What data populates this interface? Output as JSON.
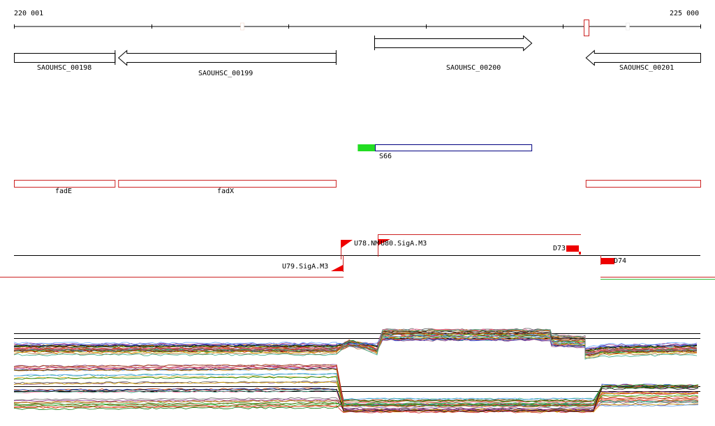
{
  "ruler": {
    "start_label": "220 001",
    "end_label": "225 000",
    "start": 220001,
    "end": 225000
  },
  "genes": [
    {
      "name": "SAOUHSC_00198",
      "start": 220001,
      "end": 220735,
      "strand": "+"
    },
    {
      "name": "SAOUHSC_00199",
      "start": 220760,
      "end": 222345,
      "strand": "-"
    },
    {
      "name": "SAOUHSC_00200",
      "start": 222625,
      "end": 223770,
      "strand": "+"
    },
    {
      "name": "SAOUHSC_00201",
      "start": 224165,
      "end": 225000,
      "strand": "-"
    }
  ],
  "promoter_track": [
    {
      "label": "S66",
      "start": 222505,
      "end": 222630,
      "color": "#22dd22"
    },
    {
      "label": "",
      "start": 222630,
      "end": 223770,
      "color": "#ffffff"
    }
  ],
  "operon_track": [
    {
      "label": "fadE",
      "start": 220001,
      "end": 220735
    },
    {
      "label": "fadX",
      "start": 220760,
      "end": 222345
    },
    {
      "label": "",
      "start": 224165,
      "end": 225000
    }
  ],
  "features": [
    {
      "label": "U78.NM",
      "name": "feature-u78-nm"
    },
    {
      "label": "U80.SigA.M3",
      "name": "feature-u80-siga-m3"
    },
    {
      "label": "U79.SigA.M3",
      "name": "feature-u79-siga-m3"
    },
    {
      "label": "D73",
      "name": "feature-d73"
    },
    {
      "label": "D74",
      "name": "feature-d74"
    }
  ],
  "colors": {
    "accent": "#ff0000",
    "promoter_green": "#22dd22",
    "transcript_blue": "#000080",
    "axis": "#000000"
  },
  "expression_panels": {
    "segment_breaks": [
      220001,
      222345,
      222330,
      222505,
      223900,
      224165,
      225000
    ],
    "upper_levels_note": ""
  }
}
